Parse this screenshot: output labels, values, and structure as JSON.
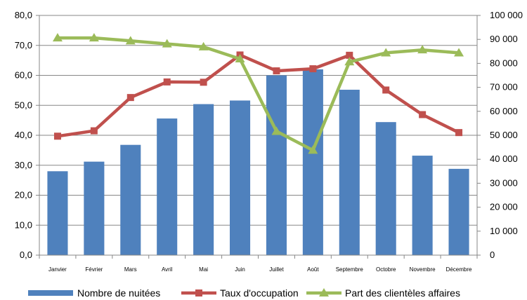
{
  "chart_data": {
    "type": "bar",
    "categories": [
      "Janvier",
      "Février",
      "Mars",
      "Avril",
      "Mai",
      "Juin",
      "Juillet",
      "Août",
      "Septembre",
      "Octobre",
      "Novembre",
      "Décembre"
    ],
    "left_axis": {
      "ylim": [
        0,
        80
      ],
      "ticks": [
        "0,0",
        "10,0",
        "20,0",
        "30,0",
        "40,0",
        "50,0",
        "60,0",
        "70,0",
        "80,0"
      ]
    },
    "right_axis": {
      "ylim": [
        0,
        100000
      ],
      "ticks": [
        "0",
        "10 000",
        "20 000",
        "30 000",
        "40 000",
        "50 000",
        "60 000",
        "70 000",
        "80 000",
        "90 000",
        "100 000"
      ]
    },
    "grid": true,
    "legend_position": "bottom",
    "series": [
      {
        "name": "Nombre de nuitées",
        "type": "bar",
        "axis": "right",
        "color": "#4F81BD",
        "values": [
          35000,
          39000,
          46000,
          57000,
          63000,
          64500,
          75000,
          77500,
          69000,
          55500,
          41500,
          36000
        ]
      },
      {
        "name": "Taux d'occupation",
        "type": "line",
        "axis": "left",
        "marker": "square",
        "color": "#C0504D",
        "values": [
          39.7,
          41.5,
          52.6,
          57.8,
          57.7,
          66.8,
          61.5,
          62.2,
          66.7,
          55.1,
          46.9,
          40.9
        ]
      },
      {
        "name": "Part des clientèles affaires",
        "type": "line",
        "axis": "left",
        "marker": "triangle",
        "color": "#9BBB59",
        "values": [
          72.5,
          72.5,
          71.5,
          70.5,
          69.5,
          65.5,
          41.3,
          35.0,
          64.5,
          67.5,
          68.5,
          67.5
        ]
      }
    ]
  }
}
